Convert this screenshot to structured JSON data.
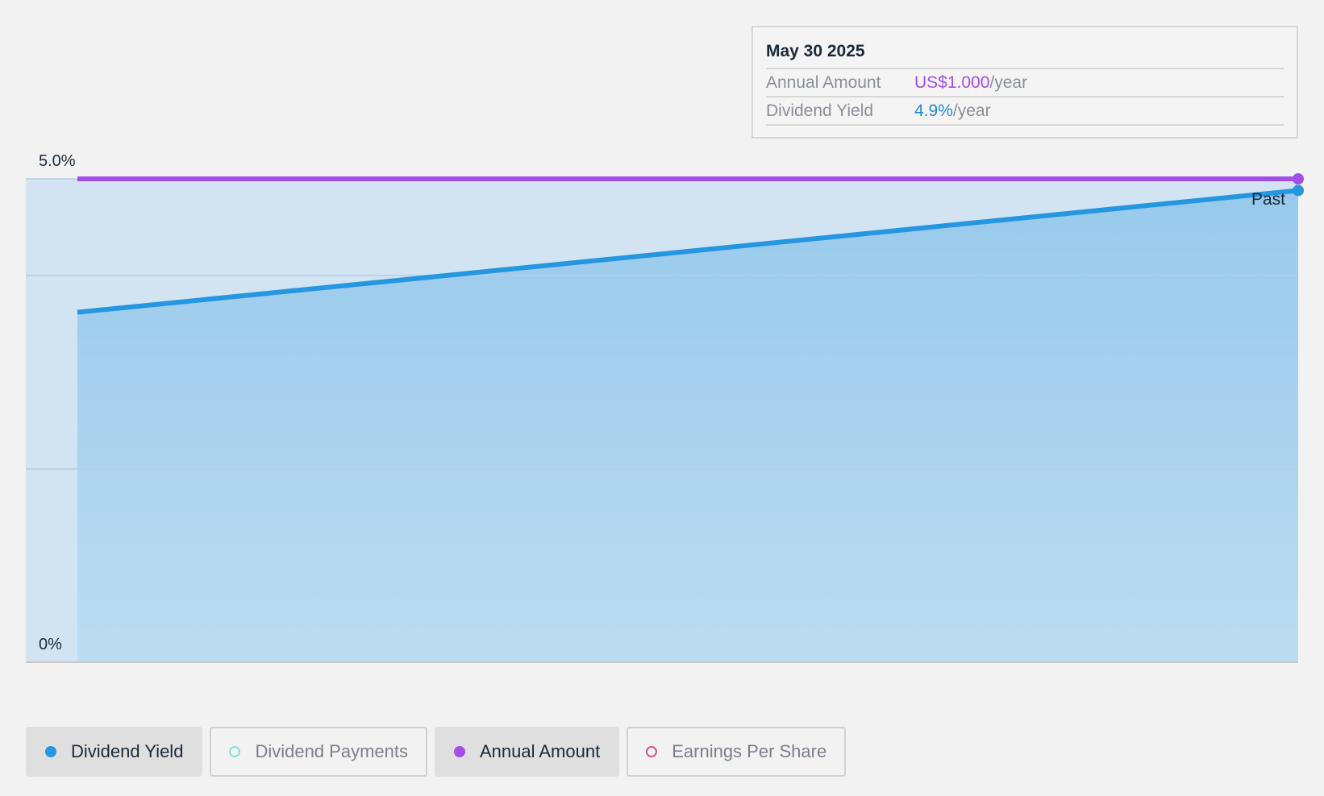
{
  "tooltip": {
    "date": "May 30 2025",
    "rows": [
      {
        "label": "Annual Amount",
        "value": "US$1.000",
        "unit": "/year"
      },
      {
        "label": "Dividend Yield",
        "value": "4.9%",
        "unit": "/year"
      }
    ]
  },
  "legend": [
    {
      "label": "Dividend Yield",
      "color": "#2596e0",
      "active": true
    },
    {
      "label": "Dividend Payments",
      "color": "#7fe3d9",
      "active": false
    },
    {
      "label": "Annual Amount",
      "color": "#a34ee6",
      "active": true
    },
    {
      "label": "Earnings Per Share",
      "color": "#d0568e",
      "active": false
    }
  ],
  "chart_data": {
    "type": "area",
    "ylim": [
      0,
      5.0
    ],
    "y_ticks": [
      {
        "value": 5.0,
        "label": "5.0%"
      },
      {
        "value": 0,
        "label": "0%"
      }
    ],
    "x_range": [
      0,
      1
    ],
    "annotation": "Past",
    "series": [
      {
        "name": "Dividend Yield",
        "color": "#2596e0",
        "x": [
          0,
          1
        ],
        "values": [
          3.62,
          4.88
        ]
      },
      {
        "name": "Annual Amount",
        "color": "#a34ee6",
        "x": [
          0,
          1
        ],
        "values": [
          5.0,
          5.0
        ]
      }
    ]
  }
}
